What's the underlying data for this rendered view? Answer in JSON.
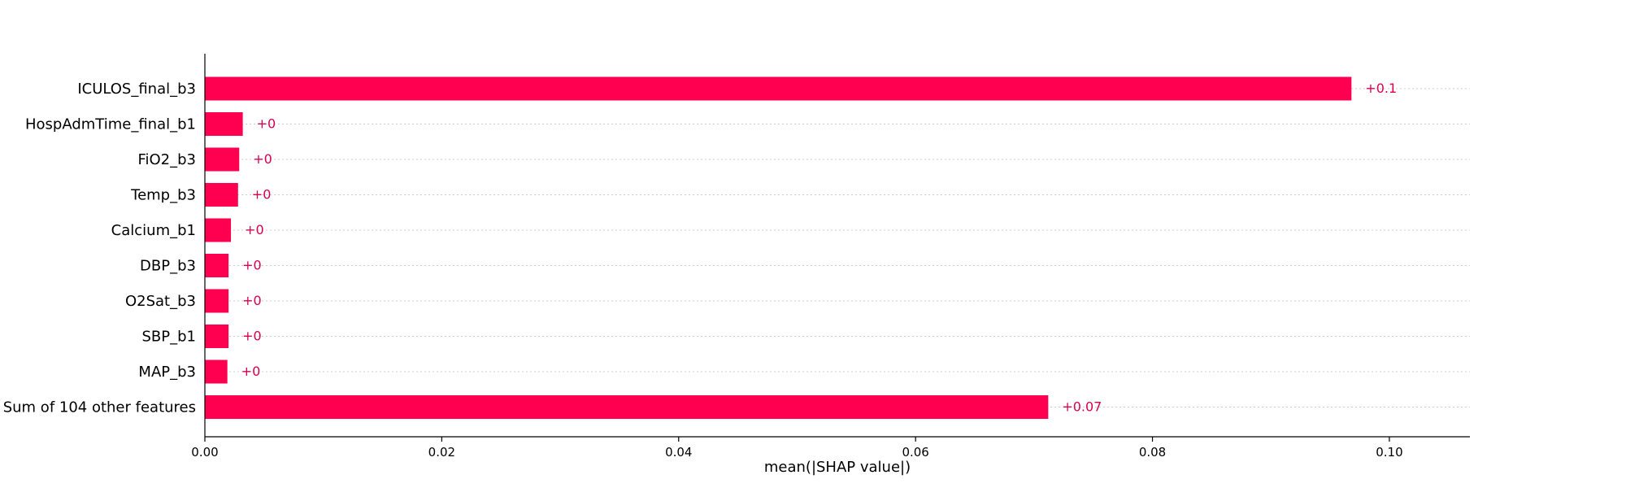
{
  "chart_data": {
    "type": "bar",
    "orientation": "horizontal",
    "categories": [
      "ICULOS_final_b3",
      "HospAdmTime_final_b1",
      "FiO2_b3",
      "Temp_b3",
      "Calcium_b1",
      "DBP_b3",
      "O2Sat_b3",
      "SBP_b1",
      "MAP_b3",
      "Sum of 104 other features"
    ],
    "values": [
      0.0968,
      0.0032,
      0.0029,
      0.0028,
      0.0022,
      0.002,
      0.002,
      0.002,
      0.0019,
      0.0712
    ],
    "value_labels": [
      "+0.1",
      "+0",
      "+0",
      "+0",
      "+0",
      "+0",
      "+0",
      "+0",
      "+0",
      "+0.07"
    ],
    "title": "",
    "xlabel": "mean(|SHAP value|)",
    "ylabel": "",
    "xlim": [
      0,
      0.1068
    ],
    "xticks": [
      0.0,
      0.02,
      0.04,
      0.06,
      0.08,
      0.1
    ],
    "xtick_labels": [
      "0.00",
      "0.02",
      "0.04",
      "0.06",
      "0.08",
      "0.10"
    ],
    "grid": "horizontal dotted",
    "legend": "none",
    "colors": {
      "bar": "#ff0051",
      "value_label": "#d6004f",
      "grid": "#cccccc",
      "axis": "#000000"
    }
  }
}
